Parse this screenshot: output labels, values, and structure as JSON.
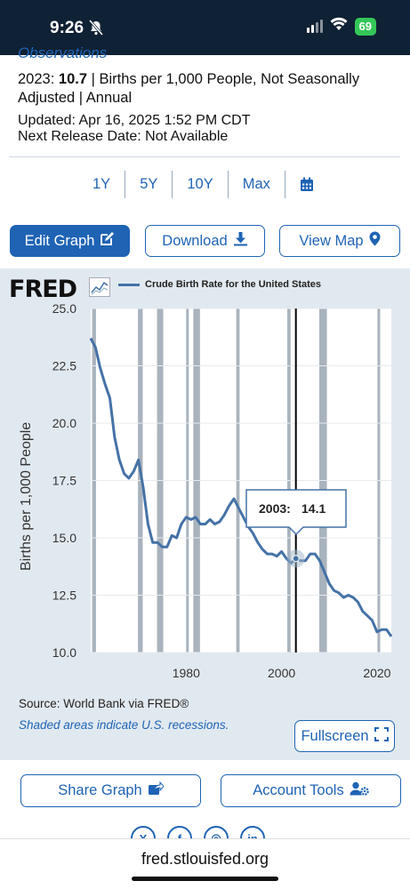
{
  "status": {
    "time": "9:26",
    "battery": "69"
  },
  "obs": {
    "partial_heading": "Observations",
    "year": "2023:",
    "value": "10.7",
    "rest": "| Births per 1,000 People, Not Seasonally Adjusted | Annual",
    "updated": "Updated: Apr 16, 2025 1:52 PM CDT",
    "next_release": "Next Release Date: Not Available"
  },
  "ranges": [
    "1Y",
    "5Y",
    "10Y",
    "Max"
  ],
  "actions": {
    "edit": "Edit Graph",
    "download": "Download",
    "view_map": "View Map"
  },
  "chart_meta": {
    "logo": "FRED",
    "legend": "Crude Birth Rate for the United States",
    "source": "Source: World Bank via FRED®",
    "shaded_note": "Shaded areas indicate U.S. recessions.",
    "fullscreen": "Fullscreen",
    "tooltip_year": "2003:",
    "tooltip_value": "14.1"
  },
  "chart_data": {
    "type": "line",
    "title": "",
    "ylabel": "Births per 1,000 People",
    "xlabel": "",
    "ylim": [
      10.0,
      25.0
    ],
    "yticks": [
      "25.0",
      "22.5",
      "20.0",
      "17.5",
      "15.0",
      "12.5",
      "10.0"
    ],
    "xticks": [
      "1980",
      "2000",
      "2020"
    ],
    "series": [
      {
        "name": "Crude Birth Rate for the United States",
        "color": "#4572a7",
        "x": [
          1960,
          1961,
          1962,
          1963,
          1964,
          1965,
          1966,
          1967,
          1968,
          1969,
          1970,
          1971,
          1972,
          1973,
          1974,
          1975,
          1976,
          1977,
          1978,
          1979,
          1980,
          1981,
          1982,
          1983,
          1984,
          1985,
          1986,
          1987,
          1988,
          1989,
          1990,
          1991,
          1992,
          1993,
          1994,
          1995,
          1996,
          1997,
          1998,
          1999,
          2000,
          2001,
          2002,
          2003,
          2004,
          2005,
          2006,
          2007,
          2008,
          2009,
          2010,
          2011,
          2012,
          2013,
          2014,
          2015,
          2016,
          2017,
          2018,
          2019,
          2020,
          2021,
          2022,
          2023
        ],
        "values": [
          23.7,
          23.3,
          22.4,
          21.7,
          21.1,
          19.4,
          18.4,
          17.8,
          17.6,
          17.9,
          18.4,
          17.2,
          15.6,
          14.8,
          14.8,
          14.6,
          14.6,
          15.1,
          15.0,
          15.6,
          15.9,
          15.8,
          15.9,
          15.6,
          15.6,
          15.8,
          15.6,
          15.7,
          16.0,
          16.4,
          16.7,
          16.3,
          15.9,
          15.5,
          15.2,
          14.8,
          14.5,
          14.3,
          14.3,
          14.2,
          14.4,
          14.1,
          13.9,
          14.1,
          14.0,
          14.0,
          14.3,
          14.3,
          14.0,
          13.5,
          13.0,
          12.7,
          12.6,
          12.4,
          12.5,
          12.4,
          12.2,
          11.8,
          11.6,
          11.4,
          10.9,
          11.0,
          11.0,
          10.7
        ]
      }
    ],
    "recessions": [
      [
        1960.3,
        1961.1
      ],
      [
        1969.9,
        1970.9
      ],
      [
        1973.9,
        1975.2
      ],
      [
        1980.0,
        1980.5
      ],
      [
        1981.5,
        1982.9
      ],
      [
        1990.5,
        1991.2
      ],
      [
        2001.2,
        2001.9
      ],
      [
        2007.9,
        2009.5
      ],
      [
        2020.1,
        2020.4
      ]
    ],
    "highlight": {
      "x": 2003,
      "y": 14.1
    }
  },
  "lower": {
    "share": "Share Graph",
    "account": "Account Tools"
  },
  "social": [
    "X",
    "f",
    "◎",
    "in"
  ],
  "url": "fred.stlouisfed.org"
}
